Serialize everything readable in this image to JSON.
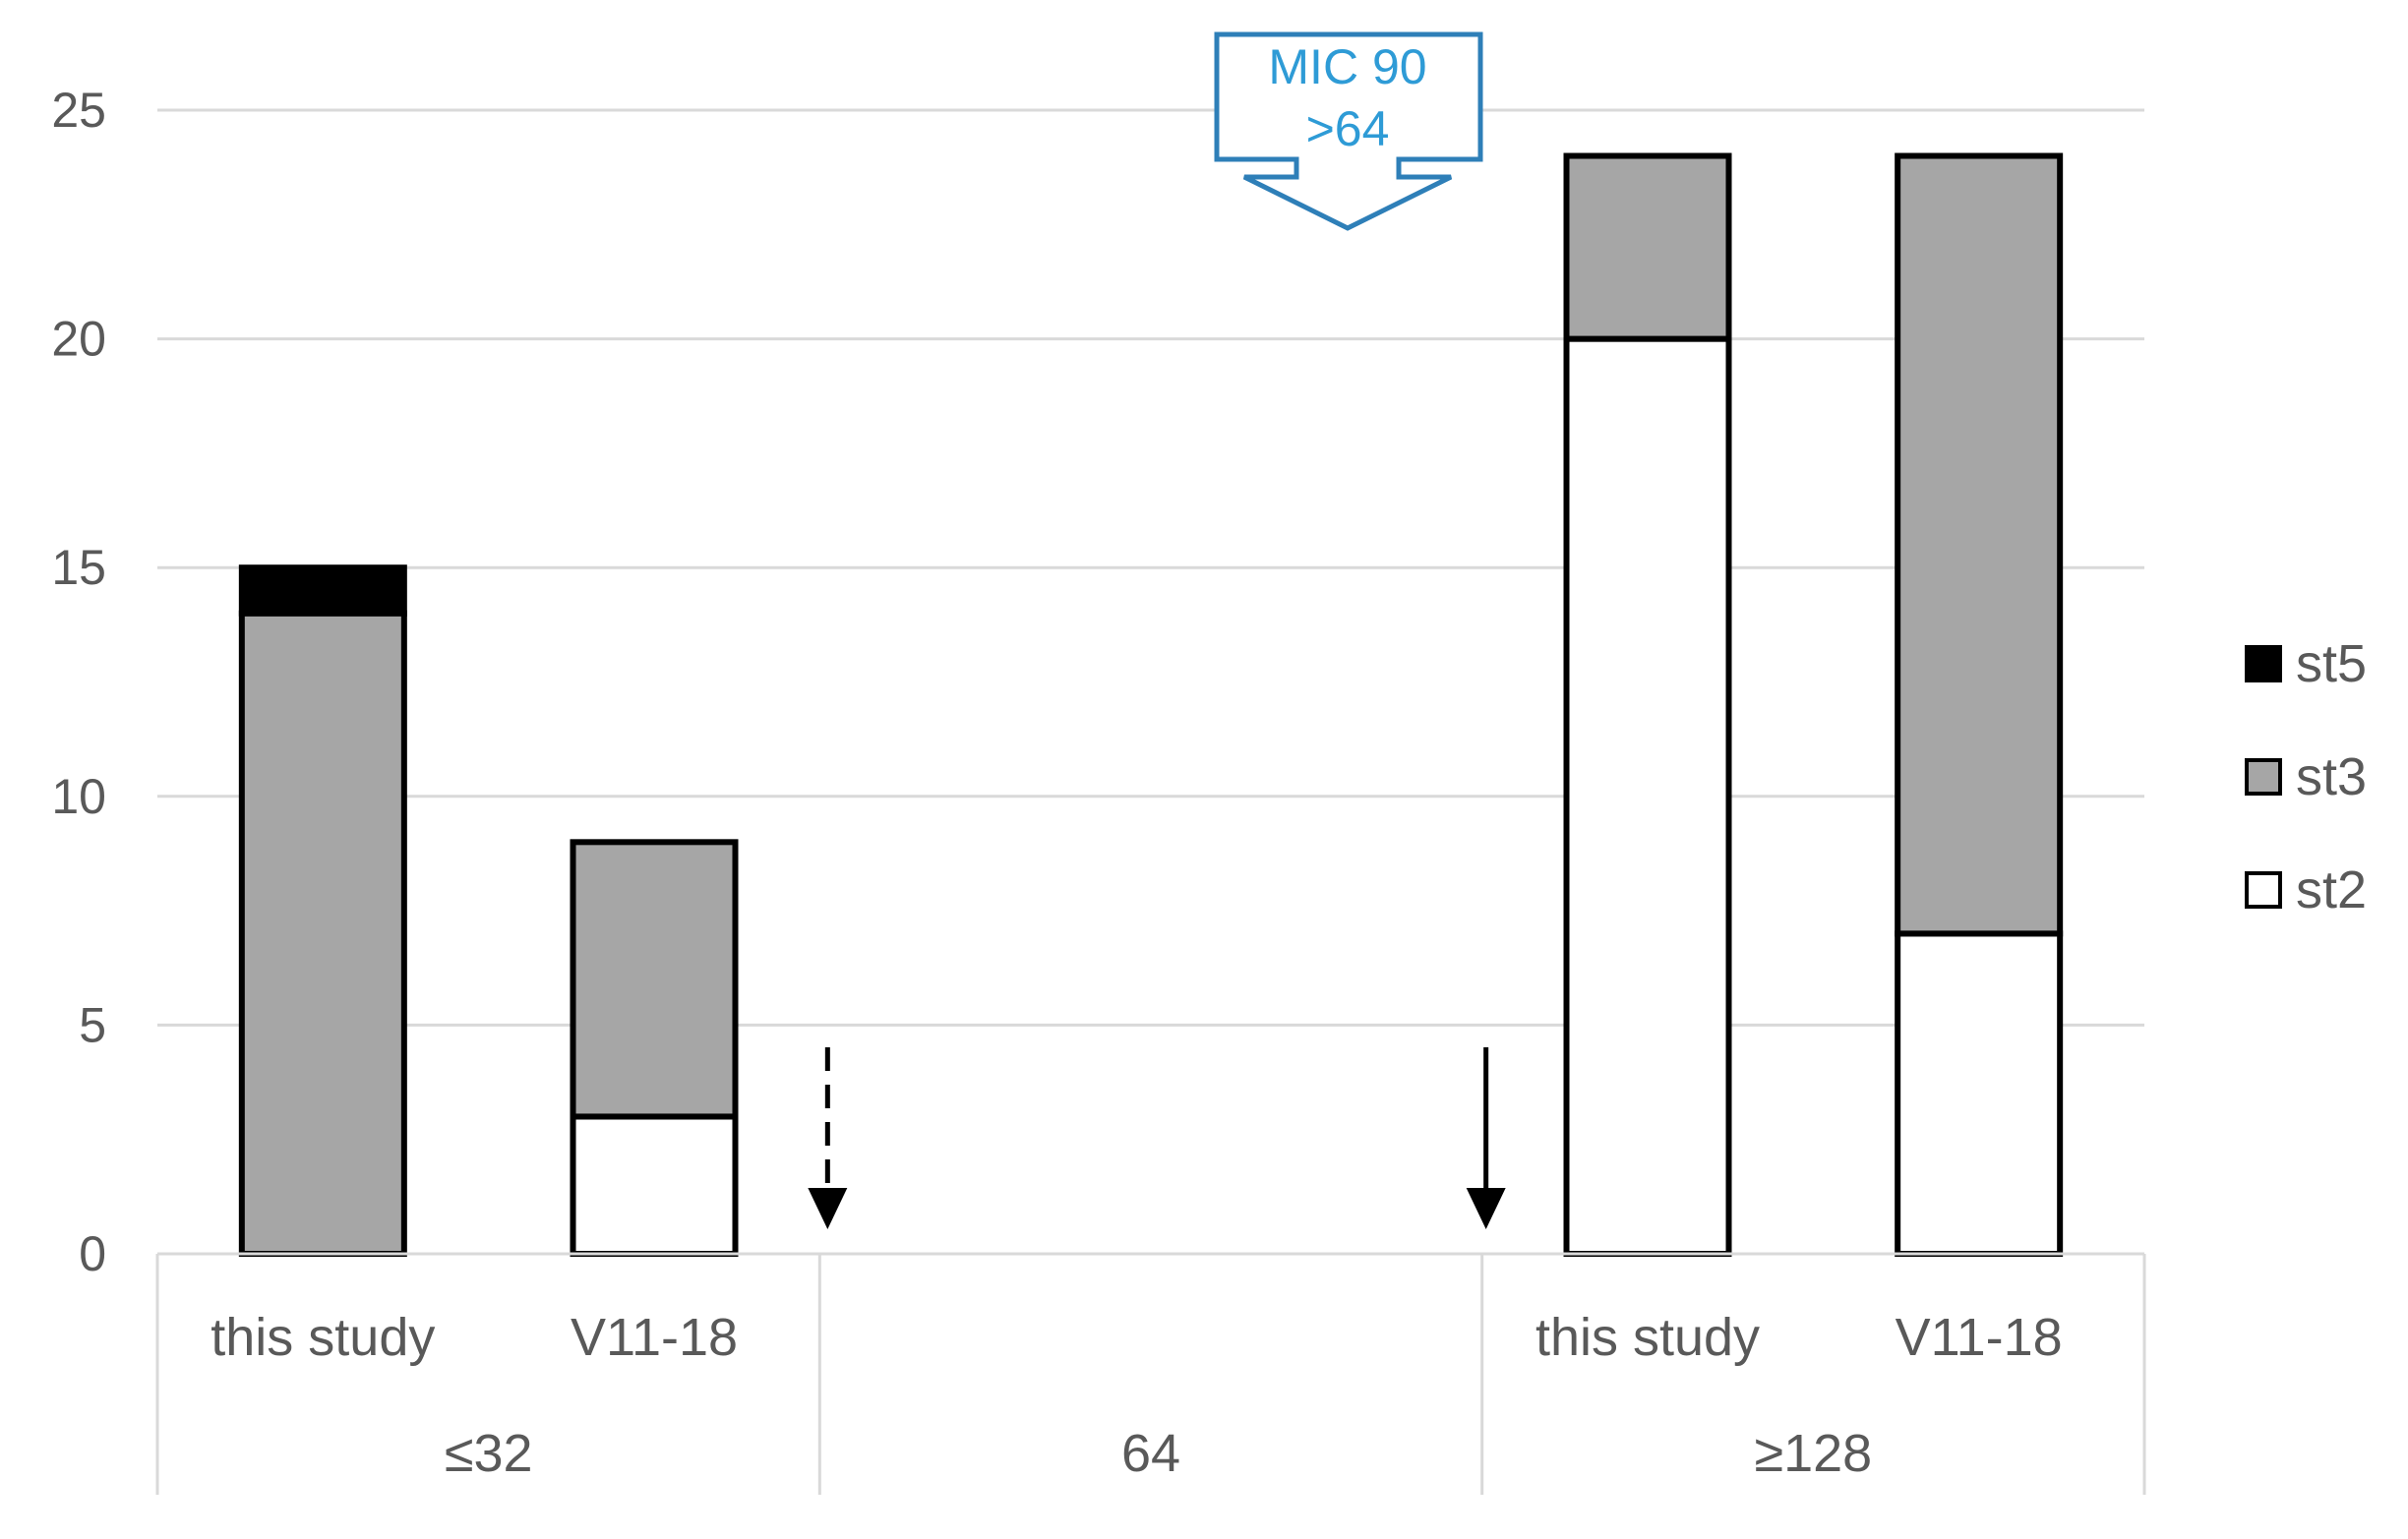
{
  "chart_data": {
    "type": "bar",
    "stacked": true,
    "title": "",
    "xlabel": "",
    "ylabel": "",
    "ylim": [
      0,
      25
    ],
    "yticks": [
      0,
      5,
      10,
      15,
      20,
      25
    ],
    "grid": true,
    "legend_position": "right",
    "groups": [
      {
        "label": "≤32",
        "categories": [
          "this study",
          "V11-18"
        ]
      },
      {
        "label": "64",
        "categories": []
      },
      {
        "label": "≥128",
        "categories": [
          "this study",
          "V11-18"
        ]
      }
    ],
    "bars": [
      {
        "group": "≤32",
        "category": "this study",
        "st2": 0,
        "st3": 14,
        "st5": 1
      },
      {
        "group": "≤32",
        "category": "V11-18",
        "st2": 3,
        "st3": 6,
        "st5": 0
      },
      {
        "group": "≥128",
        "category": "this study",
        "st2": 20,
        "st3": 4,
        "st5": 0
      },
      {
        "group": "≥128",
        "category": "V11-18",
        "st2": 7,
        "st3": 17,
        "st5": 0
      }
    ],
    "series": [
      {
        "name": "st5",
        "color": "#000000"
      },
      {
        "name": "st3",
        "color": "#a6a6a6"
      },
      {
        "name": "st2",
        "color": "#ffffff"
      }
    ],
    "callout": {
      "line1": "MIC 90",
      "line2": ">64",
      "color": "#2e7fb8"
    },
    "arrows": [
      {
        "style": "dashed",
        "position": "between ≤32 and 64"
      },
      {
        "style": "solid",
        "position": "between 64 and ≥128"
      }
    ]
  }
}
